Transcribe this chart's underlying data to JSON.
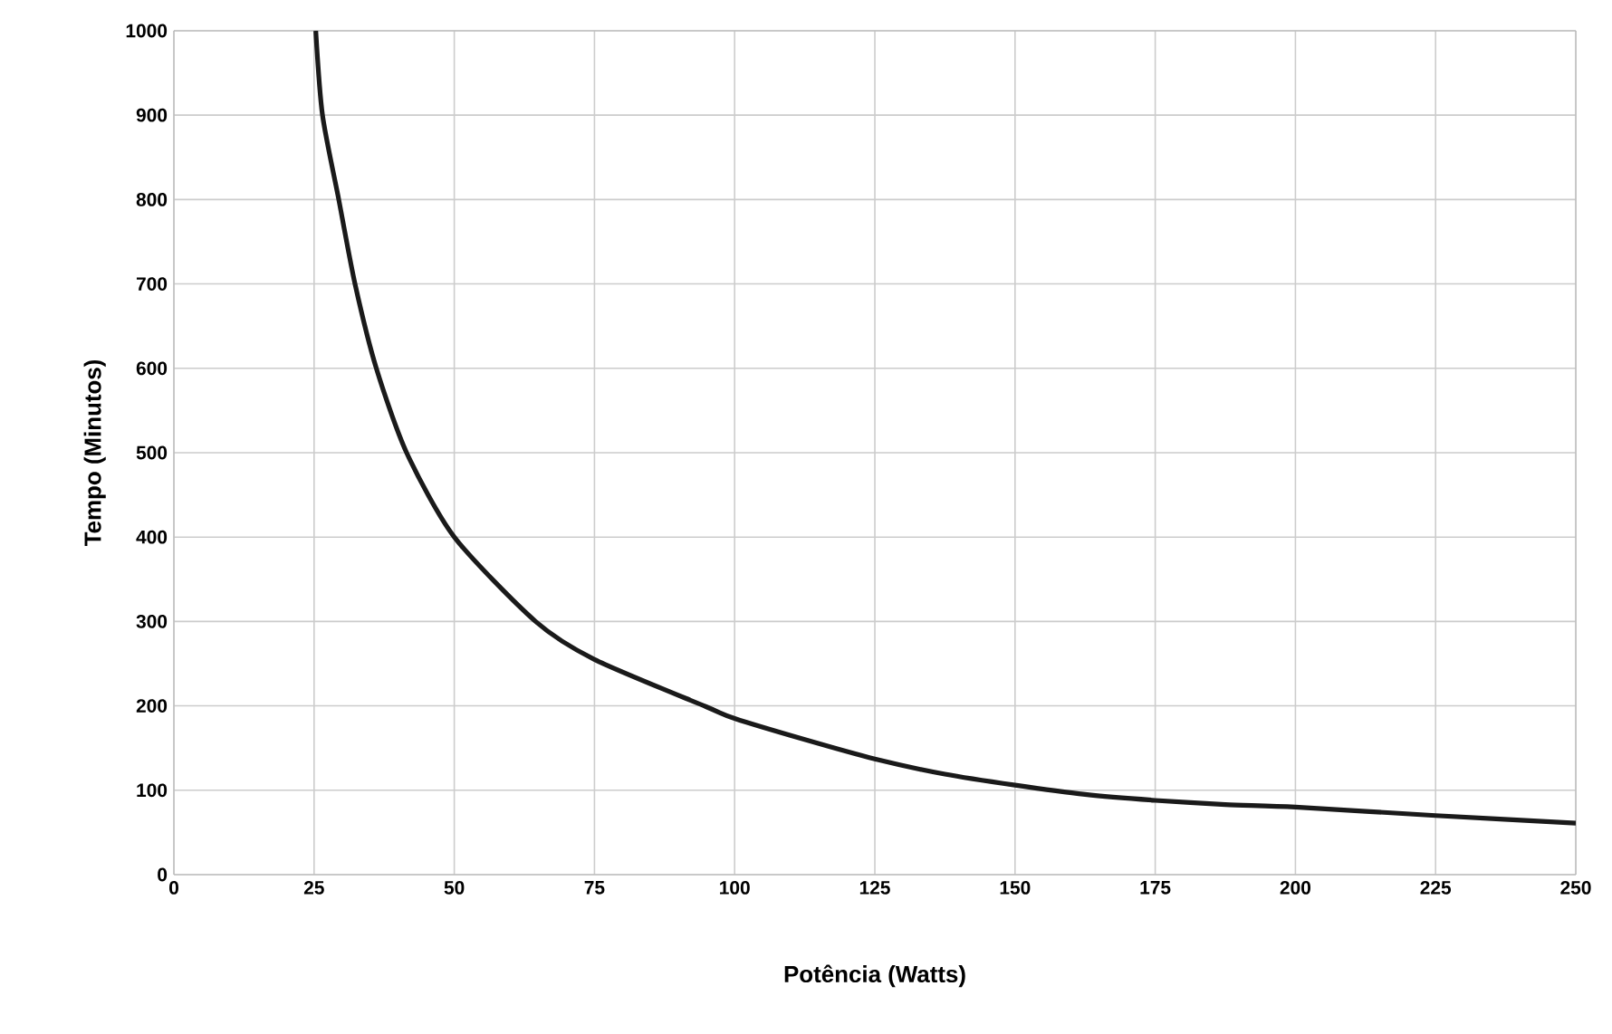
{
  "chart_data": {
    "type": "line",
    "xlabel": "Potência (Watts)",
    "ylabel": "Tempo (Minutos)",
    "x": [
      25.3,
      26.5,
      29.4,
      32.3,
      36.1,
      41.5,
      50,
      64.5,
      75,
      94.9,
      100,
      112.5,
      125,
      137.5,
      150,
      162.5,
      175,
      187.5,
      200,
      225,
      250
    ],
    "series": [
      {
        "color": "#1a1a1a",
        "values": [
          1000,
          900,
          800,
          700,
          600,
          500,
          400,
          300,
          255,
          199,
          185,
          160,
          137,
          119,
          106,
          95,
          88,
          83,
          80,
          70,
          61
        ]
      }
    ],
    "xlim": [
      0,
      250
    ],
    "ylim": [
      0,
      1000
    ],
    "xticks": [
      0,
      25,
      50,
      75,
      100,
      125,
      150,
      175,
      200,
      225,
      250
    ],
    "yticks": [
      0,
      100,
      200,
      300,
      400,
      500,
      600,
      700,
      800,
      900,
      1000
    ],
    "grid": true,
    "marker": "none",
    "line_style": "solid"
  }
}
